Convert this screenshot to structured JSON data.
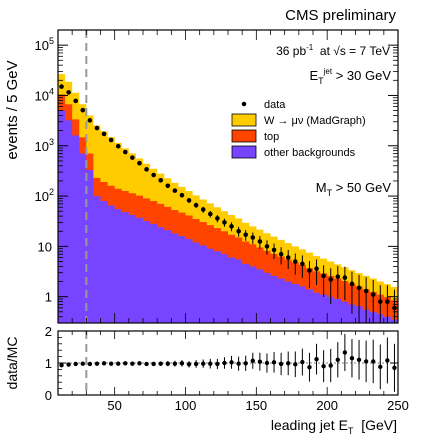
{
  "header": "CMS preliminary",
  "annotations": {
    "lumi_value": "36 pb",
    "lumi_unit_sup": "-1",
    "lumi_rest": "at √s = 7 TeV",
    "et_cut_main": "E",
    "et_cut_sub": "T",
    "et_cut_sup": "jet",
    "et_cut_rest": "> 30 GeV",
    "mt_cut_main": "M",
    "mt_cut_sub": "T",
    "mt_cut_rest": "> 50 GeV"
  },
  "colors": {
    "wmunu": "#ffcc00",
    "top": "#ff4400",
    "other": "#7744ff",
    "data": "#000000",
    "cut_line": "#999999"
  },
  "chart_data": [
    {
      "type": "area",
      "stacking": "stacked step histogram with data points",
      "bin_width_gev": 5,
      "x_bins_low_edge": [
        10,
        15,
        20,
        25,
        30,
        35,
        40,
        45,
        50,
        55,
        60,
        65,
        70,
        75,
        80,
        85,
        90,
        95,
        100,
        105,
        110,
        115,
        120,
        125,
        130,
        135,
        140,
        145,
        150,
        155,
        160,
        165,
        170,
        175,
        180,
        185,
        190,
        195,
        200,
        205,
        210,
        215,
        220,
        225,
        230,
        235,
        240,
        245
      ],
      "xlim": [
        10,
        250
      ],
      "ylim": [
        0.3,
        200000
      ],
      "yscale": "log",
      "ylabel": "events / 5 GeV",
      "yticks": [
        {
          "value": 1,
          "label": "1"
        },
        {
          "value": 10,
          "label": "10"
        },
        {
          "value": 100,
          "label": "10",
          "sup": "2"
        },
        {
          "value": 1000,
          "label": "10",
          "sup": "3"
        },
        {
          "value": 10000,
          "label": "10",
          "sup": "4"
        },
        {
          "value": 100000,
          "label": "10",
          "sup": "5"
        }
      ],
      "vertical_line_x": 30,
      "legend_position": "center-right",
      "legend": [
        {
          "key": "data",
          "label": "data",
          "marker": "point"
        },
        {
          "key": "wmunu",
          "label": "W → μν (MadGraph)",
          "marker": "fill"
        },
        {
          "key": "top",
          "label": "top",
          "marker": "fill"
        },
        {
          "key": "other",
          "label": "other backgrounds",
          "marker": "fill"
        }
      ],
      "series": [
        {
          "name": "other backgrounds",
          "key": "other",
          "values": [
            5000,
            3200,
            1600,
            700,
            330,
            100,
            80,
            65,
            55,
            48,
            42,
            37,
            32,
            28,
            24,
            21,
            18,
            16,
            14,
            12,
            10.5,
            9,
            8,
            7,
            6,
            5.5,
            4.5,
            4,
            3.5,
            3,
            2.6,
            2.3,
            2,
            1.8,
            1.6,
            1.4,
            1.2,
            1.1,
            1,
            0.9,
            0.8,
            0.7,
            0.65,
            0.55,
            0.5,
            0.45,
            0.4,
            0.35
          ]
        },
        {
          "name": "top",
          "key": "top",
          "values": [
            5500,
            3500,
            1750,
            780,
            370,
            130,
            110,
            95,
            85,
            78,
            72,
            65,
            58,
            52,
            46,
            40,
            35,
            31,
            27,
            23,
            20,
            17.5,
            15,
            13,
            11,
            9.5,
            8,
            7,
            6,
            5.2,
            4.5,
            4,
            3.5,
            3,
            2.7,
            2.3,
            2,
            1.8,
            1.6,
            1.4,
            1.25,
            1.1,
            0.95,
            0.85,
            0.75,
            0.65,
            0.58,
            0.5
          ]
        },
        {
          "name": "W → μν (MadGraph)",
          "key": "wmunu",
          "values": [
            16000,
            12000,
            8000,
            5200,
            3300,
            2300,
            1750,
            1330,
            1000,
            760,
            590,
            455,
            350,
            270,
            210,
            165,
            130,
            105,
            85,
            68,
            55,
            45,
            37,
            30,
            25,
            21,
            17,
            14,
            12,
            10,
            8.5,
            7.2,
            6.1,
            5.2,
            4.4,
            3.8,
            3.2,
            2.8,
            2.4,
            2.1,
            1.8,
            1.55,
            1.35,
            1.2,
            1.05,
            0.9,
            0.8,
            0.7
          ]
        }
      ],
      "data_points": {
        "x": [
          12.5,
          17.5,
          22.5,
          27.5,
          32.5,
          37.5,
          42.5,
          47.5,
          52.5,
          57.5,
          62.5,
          67.5,
          72.5,
          77.5,
          82.5,
          87.5,
          92.5,
          97.5,
          102.5,
          107.5,
          112.5,
          117.5,
          122.5,
          127.5,
          132.5,
          137.5,
          142.5,
          147.5,
          152.5,
          157.5,
          162.5,
          167.5,
          172.5,
          177.5,
          182.5,
          187.5,
          192.5,
          197.5,
          202.5,
          207.5,
          212.5,
          217.5,
          222.5,
          227.5,
          232.5,
          237.5,
          242.5,
          247.5
        ],
        "y": [
          15000,
          11500,
          7800,
          5100,
          3200,
          2250,
          1720,
          1300,
          980,
          750,
          580,
          450,
          340,
          262,
          206,
          160,
          128,
          104,
          82,
          66,
          54,
          44,
          36,
          30,
          25,
          20,
          17,
          15,
          12.5,
          10,
          8.5,
          7,
          6,
          5,
          4.5,
          3.3,
          3.6,
          2.6,
          2.2,
          2.5,
          2.4,
          1.8,
          1.5,
          1.3,
          1.1,
          0.8,
          0.8,
          0.6
        ]
      }
    },
    {
      "type": "scatter",
      "ylabel": "data/MC",
      "xlabel": "leading jet E",
      "xlabel_sub": "T",
      "xlabel_unit": "[GeV]",
      "xlim": [
        10,
        250
      ],
      "ylim": [
        0,
        2
      ],
      "yticks": [
        {
          "value": 0,
          "label": "0"
        },
        {
          "value": 1,
          "label": "1"
        },
        {
          "value": 2,
          "label": "2"
        }
      ],
      "xticks": [
        {
          "value": 50,
          "label": "50"
        },
        {
          "value": 100,
          "label": "100"
        },
        {
          "value": 150,
          "label": "150"
        },
        {
          "value": 200,
          "label": "200"
        },
        {
          "value": 250,
          "label": "250"
        }
      ],
      "reference_line_y": 1,
      "x": [
        12.5,
        17.5,
        22.5,
        27.5,
        32.5,
        37.5,
        42.5,
        47.5,
        52.5,
        57.5,
        62.5,
        67.5,
        72.5,
        77.5,
        82.5,
        87.5,
        92.5,
        97.5,
        102.5,
        107.5,
        112.5,
        117.5,
        122.5,
        127.5,
        132.5,
        137.5,
        142.5,
        147.5,
        152.5,
        157.5,
        162.5,
        167.5,
        172.5,
        177.5,
        182.5,
        187.5,
        192.5,
        197.5,
        202.5,
        207.5,
        212.5,
        217.5,
        222.5,
        227.5,
        232.5,
        237.5,
        242.5,
        247.5
      ],
      "y": [
        0.93,
        0.95,
        0.97,
        0.98,
        0.97,
        0.98,
        0.99,
        0.98,
        0.98,
        0.99,
        0.98,
        0.99,
        0.97,
        0.97,
        0.98,
        0.98,
        0.98,
        0.99,
        0.96,
        0.97,
        0.98,
        0.98,
        0.97,
        1.0,
        1.02,
        0.98,
        0.99,
        1.07,
        1.04,
        1.0,
        1.02,
        0.97,
        0.99,
        0.96,
        1.03,
        0.87,
        1.12,
        0.9,
        0.92,
        1.1,
        1.33,
        1.15,
        1.1,
        1.05,
        1.05,
        0.88,
        1.08,
        0.85
      ],
      "err": [
        0.01,
        0.01,
        0.01,
        0.02,
        0.02,
        0.02,
        0.02,
        0.03,
        0.03,
        0.03,
        0.04,
        0.05,
        0.05,
        0.06,
        0.07,
        0.08,
        0.09,
        0.1,
        0.1,
        0.12,
        0.13,
        0.15,
        0.16,
        0.18,
        0.2,
        0.22,
        0.24,
        0.25,
        0.28,
        0.3,
        0.32,
        0.35,
        0.37,
        0.4,
        0.42,
        0.45,
        0.48,
        0.5,
        0.52,
        0.55,
        0.58,
        0.6,
        0.62,
        0.65,
        0.68,
        0.7,
        0.72,
        0.75
      ]
    }
  ]
}
